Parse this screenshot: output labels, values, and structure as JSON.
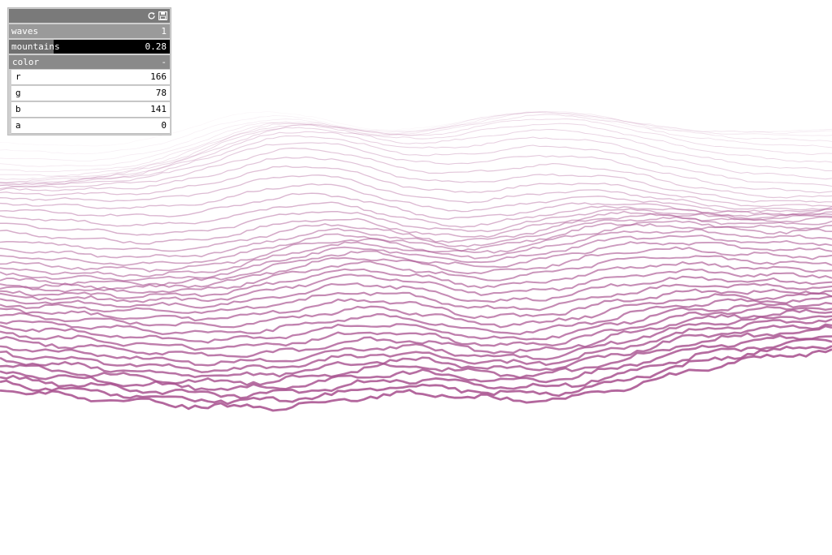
{
  "panel": {
    "icons": [
      "refresh-icon",
      "save-icon"
    ],
    "waves": {
      "label": "waves",
      "value": "1",
      "fraction": 1.0
    },
    "mountains": {
      "label": "mountains",
      "value": "0.28",
      "fraction": 0.28
    },
    "color": {
      "label": "color",
      "collapse": "-",
      "channels": [
        {
          "label": "r",
          "value": "166"
        },
        {
          "label": "g",
          "value": "78"
        },
        {
          "label": "b",
          "value": "141"
        },
        {
          "label": "a",
          "value": "0"
        }
      ]
    }
  },
  "line_color": "#a64e8d"
}
